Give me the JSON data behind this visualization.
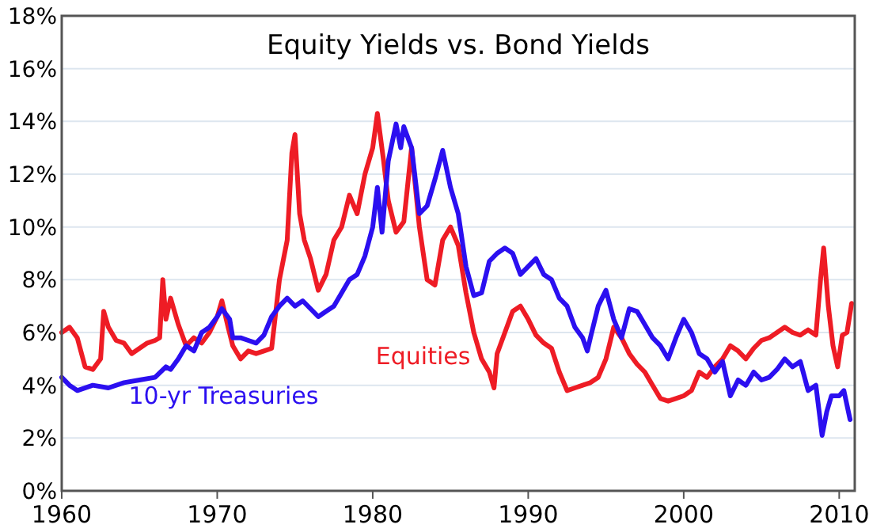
{
  "chart_data": {
    "type": "line",
    "title": "Equity Yields vs. Bond Yields",
    "xlim": [
      1960,
      2011
    ],
    "xticks": [
      1960,
      1970,
      1980,
      1990,
      2000,
      2010
    ],
    "ylim": [
      0,
      18
    ],
    "yticks": [
      {
        "value": 0,
        "label": "0%"
      },
      {
        "value": 2,
        "label": "2%"
      },
      {
        "value": 4,
        "label": "4%"
      },
      {
        "value": 6,
        "label": "6%"
      },
      {
        "value": 8,
        "label": "8%"
      },
      {
        "value": 10,
        "label": "10%"
      },
      {
        "value": 12,
        "label": "12%"
      },
      {
        "value": 14,
        "label": "14%"
      },
      {
        "value": 16,
        "label": "16%"
      },
      {
        "value": 18,
        "label": "18%"
      }
    ],
    "grid": "y",
    "legend": false,
    "series": [
      {
        "name": "Equities",
        "color": "#ee1c25",
        "x": [
          1960,
          1960.5,
          1961,
          1961.5,
          1962,
          1962.5,
          1962.7,
          1963,
          1963.5,
          1964,
          1964.5,
          1965,
          1965.5,
          1966,
          1966.3,
          1966.5,
          1966.7,
          1967,
          1967.5,
          1968,
          1968.5,
          1969,
          1969.5,
          1970,
          1970.3,
          1970.7,
          1971,
          1971.5,
          1972,
          1972.5,
          1973,
          1973.5,
          1974,
          1974.5,
          1974.8,
          1975,
          1975.3,
          1975.6,
          1976,
          1976.5,
          1977,
          1977.5,
          1978,
          1978.5,
          1979,
          1979.5,
          1980,
          1980.3,
          1980.7,
          1981,
          1981.5,
          1982,
          1982.5,
          1983,
          1983.5,
          1984,
          1984.5,
          1985,
          1985.5,
          1986,
          1986.5,
          1987,
          1987.5,
          1987.8,
          1988,
          1988.5,
          1989,
          1989.5,
          1990,
          1990.5,
          1991,
          1991.5,
          1992,
          1992.5,
          1993,
          1993.5,
          1994,
          1994.5,
          1995,
          1995.5,
          1996,
          1996.5,
          1997,
          1997.5,
          1998,
          1998.5,
          1999,
          1999.5,
          2000,
          2000.5,
          2001,
          2001.5,
          2002,
          2002.5,
          2003,
          2003.5,
          2004,
          2004.5,
          2005,
          2005.5,
          2006,
          2006.5,
          2007,
          2007.5,
          2008,
          2008.5,
          2008.8,
          2009,
          2009.3,
          2009.6,
          2009.9,
          2010.2,
          2010.5,
          2010.8
        ],
        "values": [
          6.0,
          6.2,
          5.8,
          4.7,
          4.6,
          5.0,
          6.8,
          6.2,
          5.7,
          5.6,
          5.2,
          5.4,
          5.6,
          5.7,
          5.8,
          8.0,
          6.5,
          7.3,
          6.3,
          5.5,
          5.8,
          5.6,
          6.0,
          6.6,
          7.2,
          6.2,
          5.5,
          5.0,
          5.3,
          5.2,
          5.3,
          5.4,
          8.0,
          9.5,
          12.8,
          13.5,
          10.5,
          9.5,
          8.8,
          7.6,
          8.2,
          9.5,
          10.0,
          11.2,
          10.5,
          12.0,
          13.0,
          14.3,
          12.5,
          11.0,
          9.8,
          10.2,
          13.0,
          10.0,
          8.0,
          7.8,
          9.5,
          10.0,
          9.3,
          7.5,
          6.0,
          5.0,
          4.5,
          3.9,
          5.2,
          6.0,
          6.8,
          7.0,
          6.5,
          5.9,
          5.6,
          5.4,
          4.5,
          3.8,
          3.9,
          4.0,
          4.1,
          4.3,
          5.0,
          6.2,
          5.8,
          5.2,
          4.8,
          4.5,
          4.0,
          3.5,
          3.4,
          3.5,
          3.6,
          3.8,
          4.5,
          4.3,
          4.7,
          5.0,
          5.5,
          5.3,
          5.0,
          5.4,
          5.7,
          5.8,
          6.0,
          6.2,
          6.0,
          5.9,
          6.1,
          5.9,
          8.0,
          9.2,
          7.0,
          5.5,
          4.7,
          5.9,
          6.0,
          7.1
        ]
      },
      {
        "name": "10-yr Treasuries",
        "color": "#2b0ff0",
        "x": [
          1960,
          1960.5,
          1961,
          1962,
          1963,
          1964,
          1965,
          1966,
          1966.7,
          1967,
          1967.5,
          1968,
          1968.5,
          1969,
          1969.5,
          1970,
          1970.3,
          1970.8,
          1971,
          1971.5,
          1972,
          1972.5,
          1973,
          1973.5,
          1974,
          1974.5,
          1975,
          1975.5,
          1976,
          1976.5,
          1977,
          1977.5,
          1978,
          1978.5,
          1979,
          1979.5,
          1980,
          1980.3,
          1980.6,
          1981,
          1981.5,
          1981.8,
          1982,
          1982.5,
          1983,
          1983.5,
          1984,
          1984.5,
          1985,
          1985.5,
          1986,
          1986.5,
          1987,
          1987.5,
          1988,
          1988.5,
          1989,
          1989.5,
          1990,
          1990.5,
          1991,
          1991.5,
          1992,
          1992.5,
          1993,
          1993.5,
          1993.8,
          1994,
          1994.5,
          1995,
          1995.5,
          1996,
          1996.5,
          1997,
          1997.5,
          1998,
          1998.5,
          1999,
          1999.5,
          2000,
          2000.5,
          2001,
          2001.5,
          2002,
          2002.5,
          2003,
          2003.5,
          2004,
          2004.5,
          2005,
          2005.5,
          2006,
          2006.5,
          2007,
          2007.5,
          2008,
          2008.5,
          2008.9,
          2009.2,
          2009.5,
          2010,
          2010.3,
          2010.7
        ],
        "values": [
          4.3,
          4.0,
          3.8,
          4.0,
          3.9,
          4.1,
          4.2,
          4.3,
          4.7,
          4.6,
          5.0,
          5.5,
          5.3,
          6.0,
          6.2,
          6.6,
          6.9,
          6.5,
          5.8,
          5.8,
          5.7,
          5.6,
          5.9,
          6.6,
          7.0,
          7.3,
          7.0,
          7.2,
          6.9,
          6.6,
          6.8,
          7.0,
          7.5,
          8.0,
          8.2,
          8.9,
          10.0,
          11.5,
          9.8,
          12.5,
          13.9,
          13.0,
          13.8,
          13.0,
          10.5,
          10.8,
          11.8,
          12.9,
          11.5,
          10.5,
          8.5,
          7.4,
          7.5,
          8.7,
          9.0,
          9.2,
          9.0,
          8.2,
          8.5,
          8.8,
          8.2,
          8.0,
          7.3,
          7.0,
          6.2,
          5.8,
          5.3,
          5.8,
          7.0,
          7.6,
          6.5,
          5.8,
          6.9,
          6.8,
          6.3,
          5.8,
          5.5,
          5.0,
          5.8,
          6.5,
          6.0,
          5.2,
          5.0,
          4.5,
          4.9,
          3.6,
          4.2,
          4.0,
          4.5,
          4.2,
          4.3,
          4.6,
          5.0,
          4.7,
          4.9,
          3.8,
          4.0,
          2.1,
          3.0,
          3.6,
          3.6,
          3.8,
          2.7
        ]
      }
    ]
  }
}
